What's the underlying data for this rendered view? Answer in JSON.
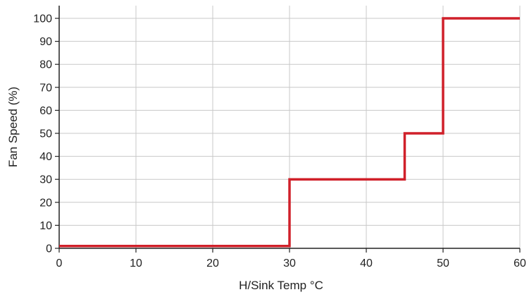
{
  "chart_data": {
    "type": "line",
    "title": "",
    "xlabel": "H/Sink Temp °C",
    "ylabel": "Fan Speed (%)",
    "xlim": [
      0,
      60
    ],
    "ylim": [
      0,
      105
    ],
    "x_ticks": [
      0,
      10,
      20,
      30,
      40,
      50,
      60
    ],
    "y_ticks": [
      0,
      10,
      20,
      30,
      40,
      50,
      60,
      70,
      80,
      90,
      100
    ],
    "grid": true,
    "line_color": "#d0202a",
    "series": [
      {
        "values": [
          {
            "x": 0,
            "y": 1
          },
          {
            "x": 30,
            "y": 1
          },
          {
            "x": 30,
            "y": 30
          },
          {
            "x": 45,
            "y": 30
          },
          {
            "x": 45,
            "y": 50
          },
          {
            "x": 50,
            "y": 50
          },
          {
            "x": 50,
            "y": 100
          },
          {
            "x": 60,
            "y": 100
          }
        ]
      }
    ]
  }
}
